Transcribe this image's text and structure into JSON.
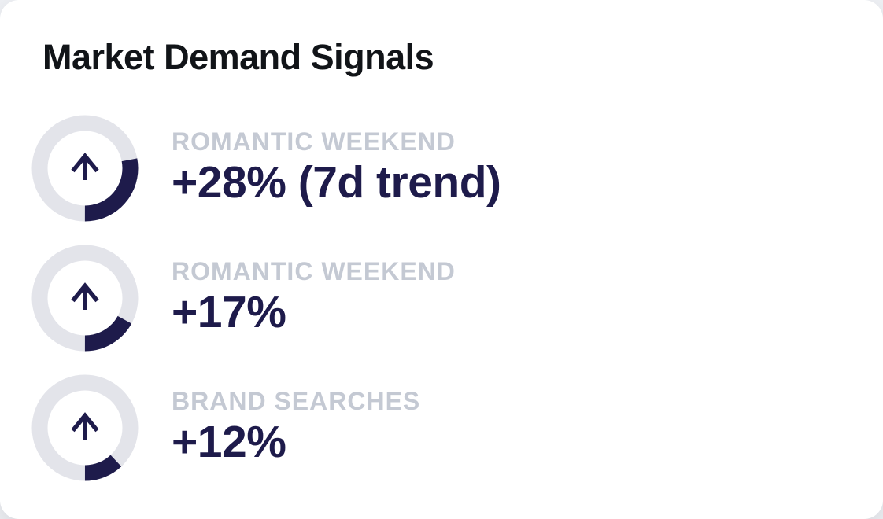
{
  "card": {
    "title": "Market Demand Signals",
    "colors": {
      "card_bg": "#ffffff",
      "title_color": "#111418",
      "accent_color": "#1e1b4b",
      "track_color": "#e3e4ea",
      "label_color": "#c4c9d3"
    },
    "signals": [
      {
        "label": "ROMANTIC WEEKEND",
        "value": "+28% (7d trend)",
        "percent": 28
      },
      {
        "label": "ROMANTIC WEEKEND",
        "value": "+17%",
        "percent": 17
      },
      {
        "label": "BRAND SEARCHES",
        "value": "+12%",
        "percent": 12
      }
    ]
  },
  "chart_data": {
    "type": "pie",
    "variant": "progress-ring-gauges",
    "title": "Market Demand Signals",
    "categories": [
      "ROMANTIC WEEKEND",
      "ROMANTIC WEEKEND",
      "BRAND SEARCHES"
    ],
    "values": [
      28,
      17,
      12
    ],
    "value_labels": [
      "+28% (7d trend)",
      "+17%",
      "+12%"
    ],
    "units": "percent",
    "ring_range": [
      0,
      100
    ],
    "arc_end_angle_deg_from_top": 180,
    "arc_direction": "clockwise",
    "legend_position": "none",
    "grid": false
  }
}
